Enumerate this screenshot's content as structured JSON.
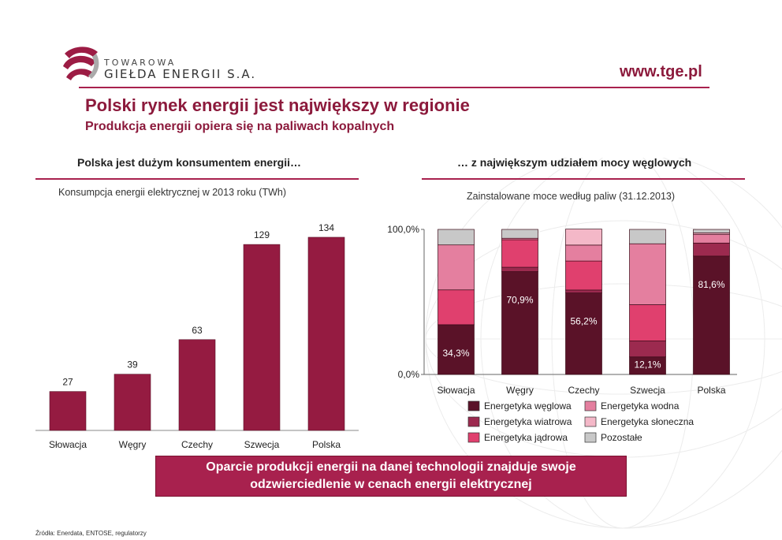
{
  "header": {
    "logo_line1": "TOWAROWA",
    "logo_line2": "GIEŁDA ENERGII S.A.",
    "website": "www.tge.pl"
  },
  "title": "Polski rynek energii jest największy w regionie",
  "subtitle": "Produkcja energii opiera się na paliwach kopalnych",
  "left_section_title": "Polska jest dużym konsumentem energii…",
  "right_section_title": "… z największym udziałem mocy węglowych",
  "banner_line1": "Oparcie produkcji energii na danej technologii znajduje swoje",
  "banner_line2": "odzwierciedlenie w cenach energii elektrycznej",
  "footer": "Źródła: Enerdata, ENTOSE, regulatorzy",
  "colors": {
    "brand": "#8c1a3c",
    "bar": "#951b41"
  },
  "chart_data": [
    {
      "type": "bar",
      "title": "Konsumpcja energii elektrycznej w 2013 roku (TWh)",
      "categories": [
        "Słowacja",
        "Węgry",
        "Czechy",
        "Szwecja",
        "Polska"
      ],
      "values": [
        27,
        39,
        63,
        129,
        134
      ],
      "color": "#951b41",
      "ylim": [
        0,
        140
      ]
    },
    {
      "type": "bar",
      "stacked": true,
      "title": "Zainstalowane moce według paliw (31.12.2013)",
      "categories": [
        "Słowacja",
        "Węgry",
        "Czechy",
        "Szwecja",
        "Polska"
      ],
      "y_ticks": [
        "100,0%",
        "0,0%"
      ],
      "ylim": [
        0,
        100
      ],
      "series": [
        {
          "name": "Energetyka węglowa",
          "color": "#5a1228",
          "values": [
            34.3,
            70.9,
            56.2,
            12.1,
            81.6
          ],
          "labels": [
            "34,3%",
            "70,9%",
            "56,2%",
            "12,1%",
            "81,6%"
          ]
        },
        {
          "name": "Energetyka wiatrowa",
          "color": "#9c2a4f",
          "values": [
            0,
            3,
            2,
            11,
            9
          ]
        },
        {
          "name": "Energetyka jądrowa",
          "color": "#e0406e",
          "values": [
            24,
            19,
            20,
            25,
            0
          ]
        },
        {
          "name": "Energetyka wodna",
          "color": "#e47f9f",
          "values": [
            31,
            1,
            11,
            42,
            6
          ]
        },
        {
          "name": "Energetyka słoneczna",
          "color": "#f4b8c8",
          "values": [
            0,
            0,
            11,
            0,
            1
          ]
        },
        {
          "name": "Pozostałe",
          "color": "#c8c8c8",
          "values": [
            10.7,
            6.1,
            -0.2,
            9.9,
            2.4
          ]
        }
      ],
      "legend": "bottom"
    }
  ]
}
